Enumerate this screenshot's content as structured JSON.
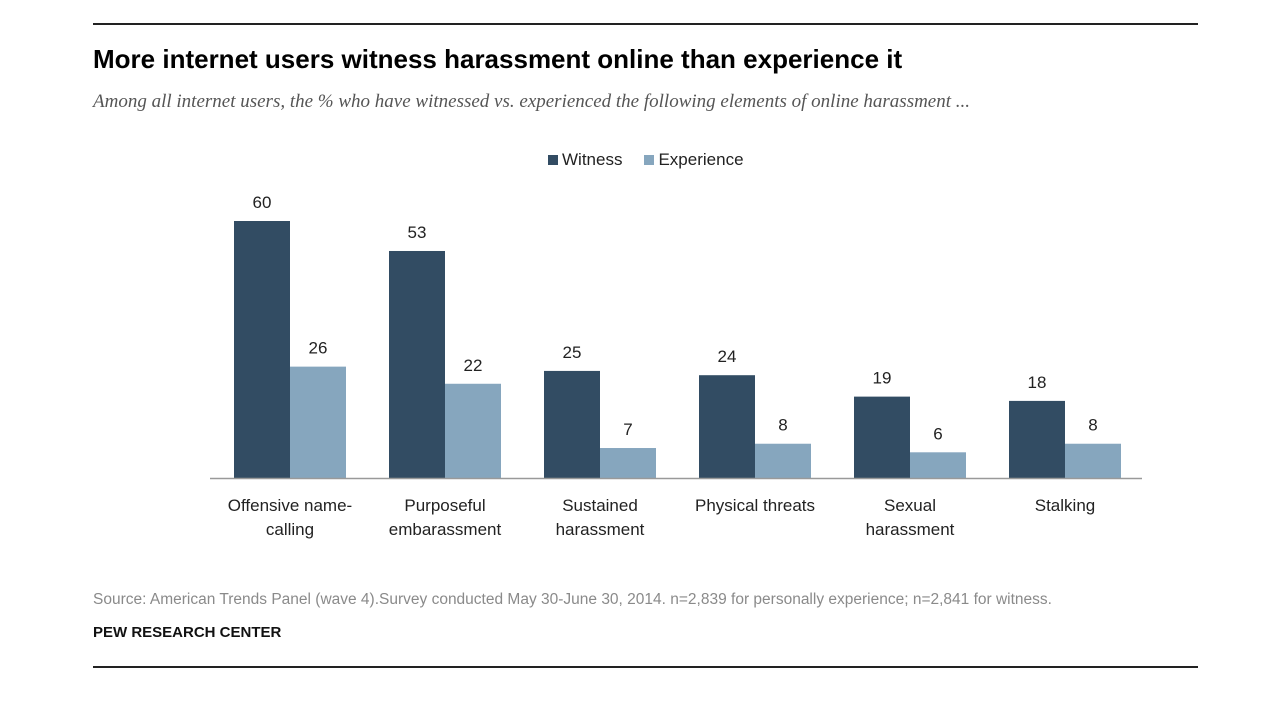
{
  "header": {
    "title": "More internet users witness harassment online than experience it",
    "subtitle": "Among all internet users, the % who have witnessed vs. experienced the following elements of online harassment ..."
  },
  "legend": {
    "witness_label": "Witness",
    "experience_label": "Experience"
  },
  "colors": {
    "witness": "#324c63",
    "experience": "#86a6be",
    "axis": "#999999"
  },
  "chart_data": {
    "type": "bar",
    "categories": [
      [
        "Offensive name-",
        "calling"
      ],
      [
        "Purposeful",
        "embarassment"
      ],
      [
        "Sustained",
        "harassment"
      ],
      [
        "Physical threats"
      ],
      [
        "Sexual",
        "harassment"
      ],
      [
        "Stalking"
      ]
    ],
    "series": [
      {
        "name": "Witness",
        "values": [
          60,
          53,
          25,
          24,
          19,
          18
        ]
      },
      {
        "name": "Experience",
        "values": [
          26,
          22,
          7,
          8,
          6,
          8
        ]
      }
    ],
    "ylim": [
      0,
      60
    ],
    "grid": false,
    "legend_position": "top-center"
  },
  "footer": {
    "source": "Source: American Trends Panel (wave 4).Survey conducted May 30-June 30, 2014. n=2,839 for personally experience; n=2,841 for witness.",
    "organization": "PEW RESEARCH CENTER"
  }
}
